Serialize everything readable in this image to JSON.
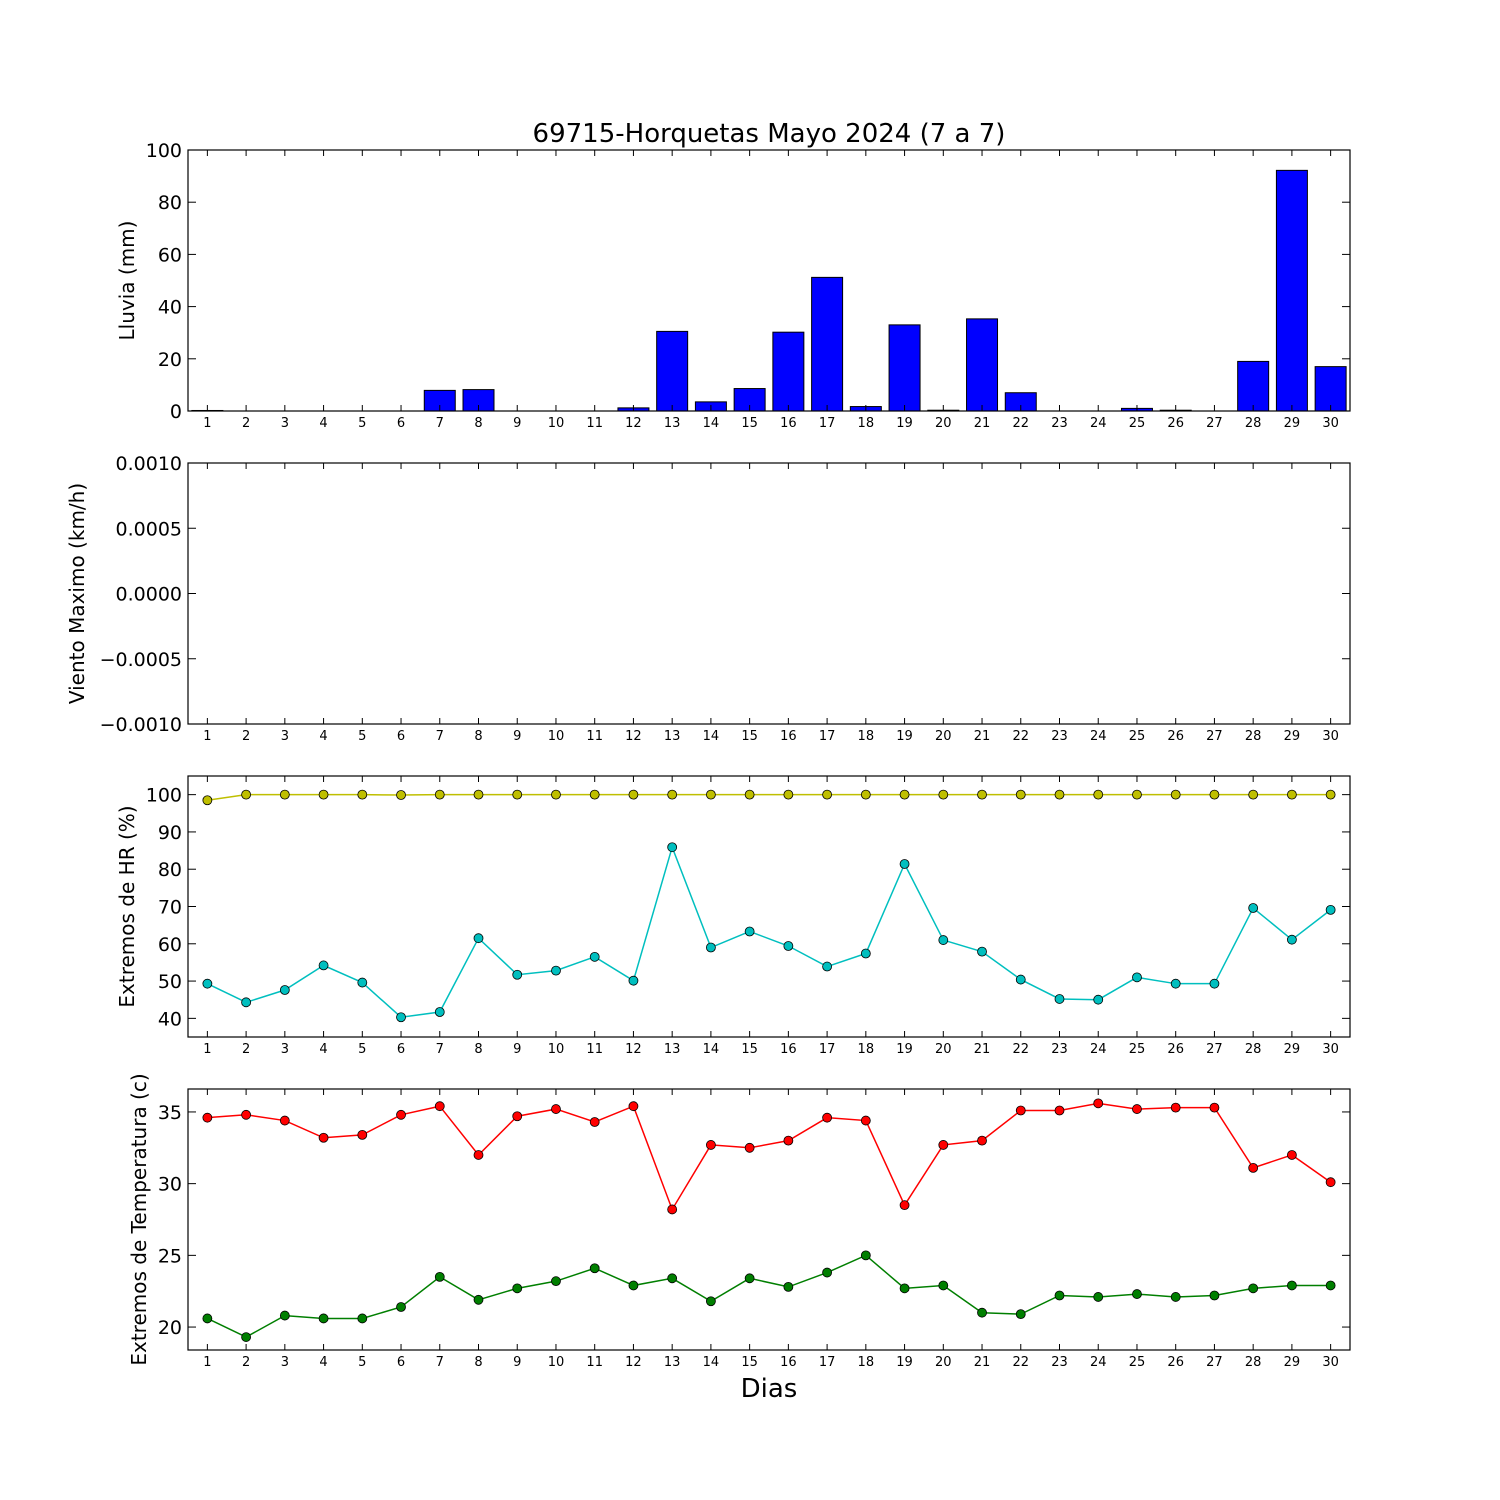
{
  "title": "69715-Horquetas Mayo 2024  (7 a 7)",
  "xlabel": "Dias",
  "chart_data": [
    {
      "type": "bar",
      "ylabel": "Lluvia (mm)",
      "categories": [
        "1",
        "2",
        "3",
        "4",
        "5",
        "6",
        "7",
        "8",
        "9",
        "10",
        "11",
        "12",
        "13",
        "14",
        "15",
        "16",
        "17",
        "18",
        "19",
        "20",
        "21",
        "22",
        "23",
        "24",
        "25",
        "26",
        "27",
        "28",
        "29",
        "30"
      ],
      "ylim": [
        0,
        100
      ],
      "yticks": [
        0,
        20,
        40,
        60,
        80,
        100
      ],
      "ytick_labels": [
        "0",
        "20",
        "40",
        "60",
        "80",
        "100"
      ],
      "series": [
        {
          "color": "#0000ff",
          "values": [
            0.2,
            0,
            0,
            0,
            0,
            0,
            7.9,
            8.2,
            0,
            0,
            0,
            1.2,
            30.5,
            3.5,
            8.6,
            30.2,
            51.2,
            1.7,
            33,
            0.3,
            35.3,
            7,
            0,
            0,
            1,
            0.3,
            0,
            19,
            92.2,
            17
          ]
        }
      ],
      "grid": false
    },
    {
      "type": "line",
      "ylabel": "Viento Maximo (km/h)",
      "categories": [
        "1",
        "2",
        "3",
        "4",
        "5",
        "6",
        "7",
        "8",
        "9",
        "10",
        "11",
        "12",
        "13",
        "14",
        "15",
        "16",
        "17",
        "18",
        "19",
        "20",
        "21",
        "22",
        "23",
        "24",
        "25",
        "26",
        "27",
        "28",
        "29",
        "30"
      ],
      "ylim": [
        -0.001,
        0.001
      ],
      "yticks": [
        -0.001,
        -0.0005,
        0,
        0.0005,
        0.001
      ],
      "ytick_labels": [
        "−0.0010",
        "−0.0005",
        "0.0000",
        "0.0005",
        "0.0010"
      ],
      "series": [],
      "grid": false
    },
    {
      "type": "line",
      "ylabel": "Extremos de HR (%)",
      "categories": [
        "1",
        "2",
        "3",
        "4",
        "5",
        "6",
        "7",
        "8",
        "9",
        "10",
        "11",
        "12",
        "13",
        "14",
        "15",
        "16",
        "17",
        "18",
        "19",
        "20",
        "21",
        "22",
        "23",
        "24",
        "25",
        "26",
        "27",
        "28",
        "29",
        "30"
      ],
      "ylim": [
        35,
        105
      ],
      "yticks": [
        40,
        50,
        60,
        70,
        80,
        90,
        100
      ],
      "ytick_labels": [
        "40",
        "50",
        "60",
        "70",
        "80",
        "90",
        "100"
      ],
      "series": [
        {
          "color": "#bfbf00",
          "values": [
            98.5,
            100,
            100,
            100,
            100,
            99.9,
            100,
            100,
            100,
            100,
            100,
            100,
            100,
            100,
            100,
            100,
            100,
            100,
            100,
            100,
            100,
            100,
            100,
            100,
            100,
            100,
            100,
            100,
            100,
            100
          ]
        },
        {
          "color": "#00bfbf",
          "values": [
            49.3,
            44.3,
            47.6,
            54.2,
            49.6,
            40.3,
            41.7,
            61.5,
            51.7,
            52.8,
            56.5,
            50.1,
            85.9,
            59,
            63.3,
            59.4,
            53.9,
            57.4,
            81.4,
            61,
            57.9,
            50.4,
            45.2,
            45,
            51,
            49.3,
            49.3,
            69.6,
            61.1,
            69.1
          ]
        }
      ],
      "grid": false
    },
    {
      "type": "line",
      "ylabel": "Extremos de Temperatura (c)",
      "categories": [
        "1",
        "2",
        "3",
        "4",
        "5",
        "6",
        "7",
        "8",
        "9",
        "10",
        "11",
        "12",
        "13",
        "14",
        "15",
        "16",
        "17",
        "18",
        "19",
        "20",
        "21",
        "22",
        "23",
        "24",
        "25",
        "26",
        "27",
        "28",
        "29",
        "30"
      ],
      "ylim": [
        18.4,
        36.6
      ],
      "yticks": [
        20,
        25,
        30,
        35
      ],
      "ytick_labels": [
        "20",
        "25",
        "30",
        "35"
      ],
      "series": [
        {
          "color": "#ff0000",
          "values": [
            34.6,
            34.8,
            34.4,
            33.2,
            33.4,
            34.8,
            35.4,
            32,
            34.7,
            35.2,
            34.3,
            35.4,
            28.2,
            32.7,
            32.5,
            33,
            34.6,
            34.4,
            28.5,
            32.7,
            33,
            35.1,
            35.1,
            35.6,
            35.2,
            35.3,
            35.3,
            31.1,
            32,
            30.1
          ]
        },
        {
          "color": "#007f00",
          "values": [
            20.6,
            19.3,
            20.8,
            20.6,
            20.6,
            21.4,
            23.5,
            21.9,
            22.7,
            23.2,
            24.1,
            22.9,
            23.4,
            21.8,
            23.4,
            22.8,
            23.8,
            25,
            22.7,
            22.9,
            21,
            20.9,
            22.2,
            22.1,
            22.3,
            22.1,
            22.2,
            22.7,
            22.9,
            22.9
          ]
        }
      ],
      "grid": false
    }
  ]
}
